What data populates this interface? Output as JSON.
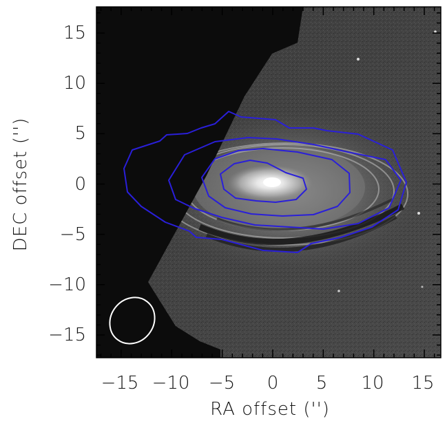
{
  "figure": {
    "xlabel": "RA offset ('')",
    "ylabel": "DEC offset ('')",
    "xticks": [
      "−15",
      "−10",
      "−5",
      "0",
      "5",
      "10",
      "15"
    ],
    "yticks": [
      "15",
      "10",
      "5",
      "0",
      "−5",
      "−10",
      "−15"
    ],
    "contour_color": "#2a1fd9",
    "beam_color": "#ffffff",
    "background_color": "#0c0c0c"
  },
  "chart_data": {
    "type": "image-with-contours",
    "xlabel": "RA offset ('')",
    "ylabel": "DEC offset ('')",
    "xlim": [
      18,
      -17.5
    ],
    "ylim": [
      -17.5,
      17.5
    ],
    "xtick_values": [
      -15,
      -10,
      -5,
      0,
      5,
      10,
      15
    ],
    "ytick_values": [
      15,
      10,
      5,
      0,
      -5,
      -10,
      -15
    ],
    "contour_levels": 4,
    "beam": {
      "center_ra": -14,
      "center_dec": -13.8,
      "major_arcsec": 4.6,
      "minor_arcsec": 3.6
    }
  }
}
